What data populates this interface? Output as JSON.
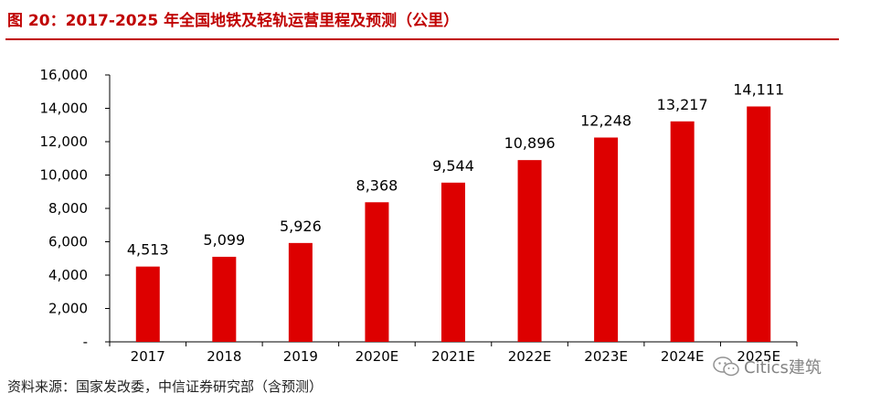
{
  "header": {
    "title": "图 20：2017-2025 年全国地铁及轻轨运营里程及预测（公里）"
  },
  "footer": {
    "source": "资料来源：国家发改委，中信证券研究部（含预测）"
  },
  "watermark": {
    "text": "Citics建筑",
    "icon": "wechat-icon"
  },
  "colors": {
    "accent": "#c00000",
    "bar": "#dd0000"
  },
  "chart_data": {
    "type": "bar",
    "categories": [
      "2017",
      "2018",
      "2019",
      "2020E",
      "2021E",
      "2022E",
      "2023E",
      "2024E",
      "2025E"
    ],
    "values": [
      4513,
      5099,
      5926,
      8368,
      9544,
      10896,
      12248,
      13217,
      14111
    ],
    "data_labels": [
      "4,513",
      "5,099",
      "5,926",
      "8,368",
      "9,544",
      "10,896",
      "12,248",
      "13,217",
      "14,111"
    ],
    "yticks": [
      "-",
      "2,000",
      "4,000",
      "6,000",
      "8,000",
      "10,000",
      "12,000",
      "14,000",
      "16,000"
    ],
    "ylim": [
      0,
      16000
    ],
    "ystep": 2000,
    "title": "",
    "xlabel": "",
    "ylabel": "",
    "grid": false,
    "legend": "none"
  }
}
